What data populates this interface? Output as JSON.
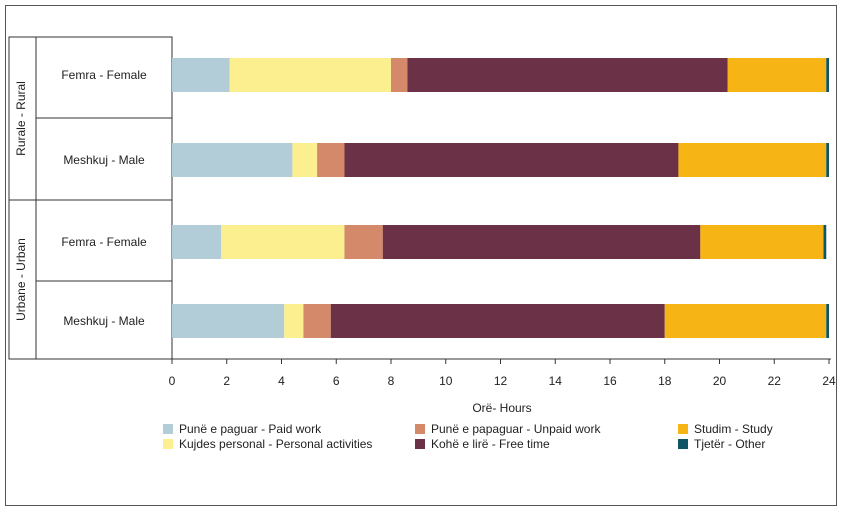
{
  "chart_data": {
    "type": "bar",
    "orientation": "horizontal",
    "stacked": true,
    "xlabel": "Orë- Hours",
    "xlim": [
      0,
      24
    ],
    "xticks": [
      0,
      2,
      4,
      6,
      8,
      10,
      12,
      14,
      16,
      18,
      20,
      22,
      24
    ],
    "groups": [
      {
        "label": "Rurale - Rural",
        "categories": [
          "Femra - Female",
          "Meshkuj - Male"
        ]
      },
      {
        "label": "Urbane - Urban",
        "categories": [
          "Femra - Female",
          "Meshkuj - Male"
        ]
      }
    ],
    "series": [
      {
        "name": "Punë e paguar - Paid work",
        "color": "#b3cdd8",
        "values": [
          2.1,
          4.4,
          1.8,
          4.1
        ]
      },
      {
        "name": "Kujdes personal - Personal activities",
        "color": "#fbef8f",
        "values": [
          5.9,
          0.9,
          4.5,
          0.7
        ]
      },
      {
        "name": "Punë e papaguar - Unpaid work",
        "color": "#d48a6a",
        "values": [
          0.6,
          1.0,
          1.4,
          1.0
        ]
      },
      {
        "name": "Kohë e lirë - Free time",
        "color": "#6b3146",
        "values": [
          11.7,
          12.2,
          11.6,
          12.2
        ]
      },
      {
        "name": "Studim - Study",
        "color": "#f7b515",
        "values": [
          3.6,
          5.4,
          4.5,
          5.9
        ]
      },
      {
        "name": "Tjetër - Other",
        "color": "#0f5566",
        "values": [
          0.1,
          0.1,
          0.1,
          0.1
        ]
      }
    ],
    "legend": {
      "position": "bottom",
      "columns": 3
    }
  }
}
